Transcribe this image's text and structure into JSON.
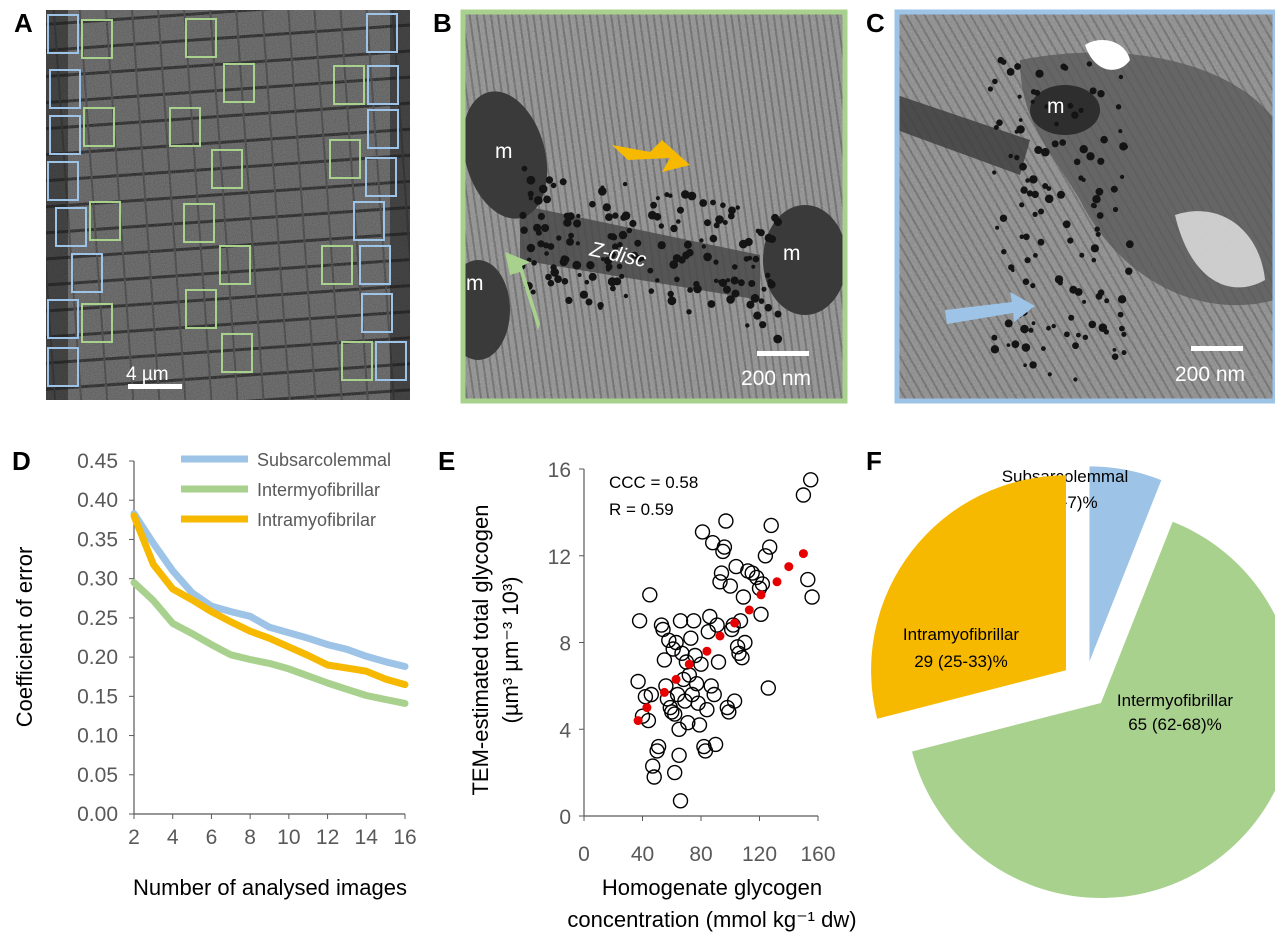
{
  "panel_labels": {
    "A": "A",
    "B": "B",
    "C": "C",
    "D": "D",
    "E": "E",
    "F": "F"
  },
  "micrographs": {
    "A": {
      "scale_bar": "4 µm"
    },
    "B": {
      "scale_bar": "200 nm",
      "labels": [
        "m",
        "m",
        "m",
        "Z-disc"
      ]
    },
    "C": {
      "scale_bar": "200 nm",
      "labels": [
        "m"
      ]
    }
  },
  "colors": {
    "subsarcolemmal": "#9dc3e6",
    "intermyofibrillar": "#a9d18e",
    "intramyofibrillar": "#f6b900",
    "correlation_points": "#e60000",
    "axis": "#595959",
    "tick_text": "#595959"
  },
  "chart_data": [
    {
      "id": "D",
      "type": "line",
      "xlabel": "Number of analysed images",
      "ylabel": "Coefficient of error",
      "xlim": [
        2,
        16
      ],
      "ylim": [
        0,
        0.45
      ],
      "xticks": [
        2,
        4,
        6,
        8,
        10,
        12,
        14,
        16
      ],
      "yticks": [
        0.0,
        0.05,
        0.1,
        0.15,
        0.2,
        0.25,
        0.3,
        0.35,
        0.4,
        0.45
      ],
      "legend": "top-right",
      "x": [
        2,
        3,
        4,
        5,
        6,
        7,
        8,
        9,
        10,
        11,
        12,
        13,
        14,
        15,
        16
      ],
      "series": [
        {
          "name": "Subsarcolemmal",
          "color": "#9dc3e6",
          "values": [
            0.383,
            0.345,
            0.31,
            0.282,
            0.265,
            0.258,
            0.252,
            0.238,
            0.231,
            0.224,
            0.216,
            0.21,
            0.201,
            0.194,
            0.188
          ]
        },
        {
          "name": "Intermyofibrillar",
          "color": "#a9d18e",
          "values": [
            0.295,
            0.272,
            0.243,
            0.23,
            0.216,
            0.203,
            0.197,
            0.192,
            0.185,
            0.176,
            0.167,
            0.159,
            0.151,
            0.146,
            0.141
          ]
        },
        {
          "name": "Intramyofibrilar",
          "color": "#f6b900",
          "values": [
            0.38,
            0.318,
            0.287,
            0.273,
            0.258,
            0.245,
            0.233,
            0.224,
            0.213,
            0.202,
            0.19,
            0.186,
            0.182,
            0.172,
            0.165
          ]
        }
      ]
    },
    {
      "id": "E",
      "type": "scatter",
      "xlabel": "Homogenate glycogen concentration (mmol kg⁻¹ dw)",
      "xlabel_lines": [
        "Homogenate glycogen",
        "concentration (mmol kg⁻¹ dw)"
      ],
      "ylabel": "TEM-estimated total glycogen (µm³ µm⁻³ 10³)",
      "ylabel_lines": [
        "TEM-estimated total glycogen",
        "(µm³ µm⁻³ 10³)"
      ],
      "xlim": [
        0,
        160
      ],
      "ylim": [
        0,
        16
      ],
      "xticks": [
        0,
        40,
        80,
        120,
        160
      ],
      "yticks": [
        0,
        4,
        8,
        12,
        16
      ],
      "annotations": [
        "CCC = 0.58",
        "R = 0.59"
      ],
      "points": [
        [
          37,
          6.2
        ],
        [
          38,
          9.0
        ],
        [
          40,
          4.6
        ],
        [
          42,
          5.5
        ],
        [
          44,
          4.4
        ],
        [
          45,
          10.2
        ],
        [
          46,
          5.6
        ],
        [
          47,
          2.3
        ],
        [
          48,
          1.8
        ],
        [
          50,
          3.0
        ],
        [
          51,
          3.2
        ],
        [
          53,
          8.8
        ],
        [
          54,
          8.6
        ],
        [
          55,
          7.2
        ],
        [
          56,
          6.0
        ],
        [
          57,
          5.4
        ],
        [
          58,
          8.1
        ],
        [
          59,
          5.0
        ],
        [
          60,
          4.8
        ],
        [
          61,
          7.7
        ],
        [
          62,
          4.7
        ],
        [
          62,
          2.0
        ],
        [
          63,
          8.0
        ],
        [
          64,
          5.6
        ],
        [
          65,
          2.8
        ],
        [
          65,
          4.0
        ],
        [
          66,
          0.7
        ],
        [
          66,
          9.0
        ],
        [
          67,
          7.5
        ],
        [
          68,
          6.3
        ],
        [
          69,
          5.3
        ],
        [
          70,
          7.1
        ],
        [
          71,
          4.3
        ],
        [
          72,
          6.5
        ],
        [
          73,
          8.2
        ],
        [
          74,
          5.6
        ],
        [
          75,
          9.0
        ],
        [
          76,
          7.4
        ],
        [
          77,
          6.1
        ],
        [
          78,
          5.2
        ],
        [
          79,
          4.2
        ],
        [
          80,
          7.0
        ],
        [
          81,
          13.1
        ],
        [
          82,
          3.2
        ],
        [
          83,
          3.0
        ],
        [
          84,
          4.9
        ],
        [
          85,
          8.5
        ],
        [
          86,
          9.2
        ],
        [
          87,
          6.0
        ],
        [
          88,
          12.6
        ],
        [
          89,
          5.6
        ],
        [
          90,
          3.3
        ],
        [
          91,
          8.8
        ],
        [
          92,
          7.1
        ],
        [
          93,
          10.8
        ],
        [
          94,
          11.2
        ],
        [
          95,
          12.2
        ],
        [
          96,
          12.4
        ],
        [
          97,
          13.6
        ],
        [
          98,
          5.0
        ],
        [
          99,
          4.8
        ],
        [
          100,
          10.6
        ],
        [
          101,
          8.6
        ],
        [
          102,
          8.8
        ],
        [
          103,
          5.3
        ],
        [
          104,
          11.5
        ],
        [
          105,
          7.8
        ],
        [
          106,
          7.5
        ],
        [
          107,
          9.0
        ],
        [
          108,
          7.3
        ],
        [
          109,
          10.1
        ],
        [
          110,
          8.0
        ],
        [
          112,
          11.3
        ],
        [
          115,
          11.2
        ],
        [
          118,
          11.0
        ],
        [
          120,
          10.5
        ],
        [
          121,
          9.3
        ],
        [
          122,
          10.7
        ],
        [
          124,
          12.0
        ],
        [
          126,
          5.9
        ],
        [
          127,
          12.4
        ],
        [
          128,
          13.4
        ],
        [
          150,
          14.8
        ],
        [
          153,
          10.9
        ],
        [
          155,
          15.5
        ],
        [
          156,
          10.1
        ]
      ],
      "fit_points": [
        [
          37,
          4.4
        ],
        [
          43,
          5.0
        ],
        [
          55,
          5.7
        ],
        [
          63,
          6.3
        ],
        [
          72,
          7.0
        ],
        [
          84,
          7.6
        ],
        [
          93,
          8.3
        ],
        [
          103,
          8.9
        ],
        [
          113,
          9.5
        ],
        [
          121,
          10.2
        ],
        [
          132,
          10.8
        ],
        [
          140,
          11.5
        ],
        [
          150,
          12.1
        ]
      ]
    },
    {
      "id": "F",
      "type": "pie",
      "slices": [
        {
          "name": "Subsarcolemmal",
          "label": "6 (5-7)%",
          "value": 6,
          "color": "#9dc3e6"
        },
        {
          "name": "Intermyofibrillar",
          "label": "65 (62-68)%",
          "value": 65,
          "color": "#a9d18e"
        },
        {
          "name": "Intramyofibrillar",
          "label": "29 (25-33)%",
          "value": 29,
          "color": "#f6b900"
        }
      ]
    }
  ]
}
